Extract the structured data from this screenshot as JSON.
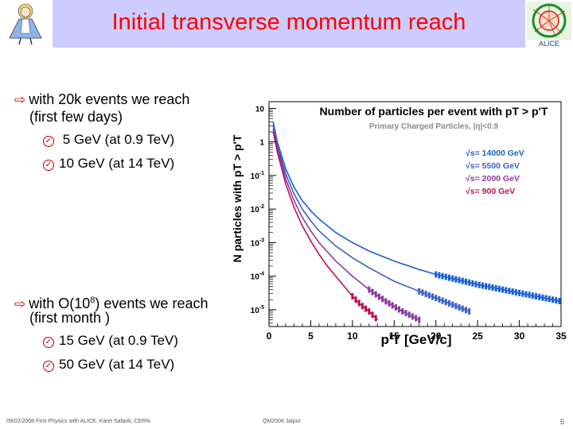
{
  "header": {
    "title": "Initial transverse momentum reach",
    "logo_right_text": "ALICE"
  },
  "bullets": {
    "b1_line1": "with 20k  events we reach",
    "b1_line2": "(first few days)",
    "b1_sub1": " 5 GeV (at 0.9 TeV)",
    "b1_sub2": "10 GeV (at 14 TeV)",
    "b2_line1_pre": "with O(10",
    "b2_line1_sup": "8",
    "b2_line1_post": ") events we reach",
    "b2_line2": "(first month )",
    "b2_sub1": "15 GeV (at 0.9 TeV)",
    "b2_sub2": "50 GeV (at 14 TeV)"
  },
  "footer": {
    "left": "09/02/2008 First Physics with ALICE, Karel Safarik, CERN",
    "center": "QM2008 Jaipur",
    "page": "5"
  },
  "chart_data": {
    "type": "line",
    "title": "Number of particles per event with pT > p'T",
    "subtitle": "Primary Charged Particles, |η|<0.9",
    "xlabel": "p'T [GeV/c]",
    "ylabel": "N particles with pT > p'T",
    "xlim": [
      0,
      35
    ],
    "ylim_log10": [
      -5.5,
      1.2
    ],
    "x_ticks": [
      "0",
      "5",
      "10",
      "15",
      "20",
      "25",
      "30",
      "35"
    ],
    "y_ticks": [
      {
        "label": "10",
        "exp": "",
        "log": 1
      },
      {
        "label": "1",
        "exp": "",
        "log": 0
      },
      {
        "label": "10",
        "exp": "-1",
        "log": -1
      },
      {
        "label": "10",
        "exp": "-2",
        "log": -2
      },
      {
        "label": "10",
        "exp": "-3",
        "log": -3
      },
      {
        "label": "10",
        "exp": "-4",
        "log": -4
      },
      {
        "label": "10",
        "exp": "-5",
        "log": -5
      }
    ],
    "legend_position": "top-right",
    "series": [
      {
        "name": "√s= 14000 GeV",
        "color": "#1a5fd6",
        "x": [
          0.5,
          1,
          2,
          3,
          4,
          5,
          6,
          8,
          10,
          12,
          15,
          18,
          20,
          25,
          30,
          35
        ],
        "log10y": [
          0.6,
          0.0,
          -0.8,
          -1.35,
          -1.75,
          -2.05,
          -2.3,
          -2.7,
          -3.0,
          -3.25,
          -3.55,
          -3.8,
          -3.95,
          -4.25,
          -4.5,
          -4.75
        ]
      },
      {
        "name": "√s= 5500 GeV",
        "color": "#3b5fcf",
        "x": [
          0.5,
          1,
          2,
          3,
          4,
          5,
          6,
          8,
          10,
          12,
          15,
          18,
          20,
          22,
          24
        ],
        "log10y": [
          0.5,
          -0.1,
          -0.95,
          -1.55,
          -2.0,
          -2.35,
          -2.65,
          -3.1,
          -3.45,
          -3.75,
          -4.15,
          -4.45,
          -4.65,
          -4.85,
          -5.05
        ]
      },
      {
        "name": "√s= 2000 GeV",
        "color": "#8c3aa0",
        "x": [
          0.5,
          1,
          2,
          3,
          4,
          5,
          6,
          8,
          10,
          12,
          14,
          16,
          18
        ],
        "log10y": [
          0.4,
          -0.2,
          -1.1,
          -1.75,
          -2.25,
          -2.65,
          -3.0,
          -3.55,
          -4.0,
          -4.4,
          -4.75,
          -5.05,
          -5.3
        ]
      },
      {
        "name": "√s= 900 GeV",
        "color": "#c0104f",
        "x": [
          0.5,
          1,
          2,
          3,
          4,
          5,
          6,
          7,
          8,
          9,
          10,
          11,
          12,
          13
        ],
        "log10y": [
          0.3,
          -0.3,
          -1.25,
          -1.95,
          -2.5,
          -2.95,
          -3.35,
          -3.7,
          -4.0,
          -4.3,
          -4.6,
          -4.85,
          -5.05,
          -5.3
        ]
      }
    ]
  }
}
